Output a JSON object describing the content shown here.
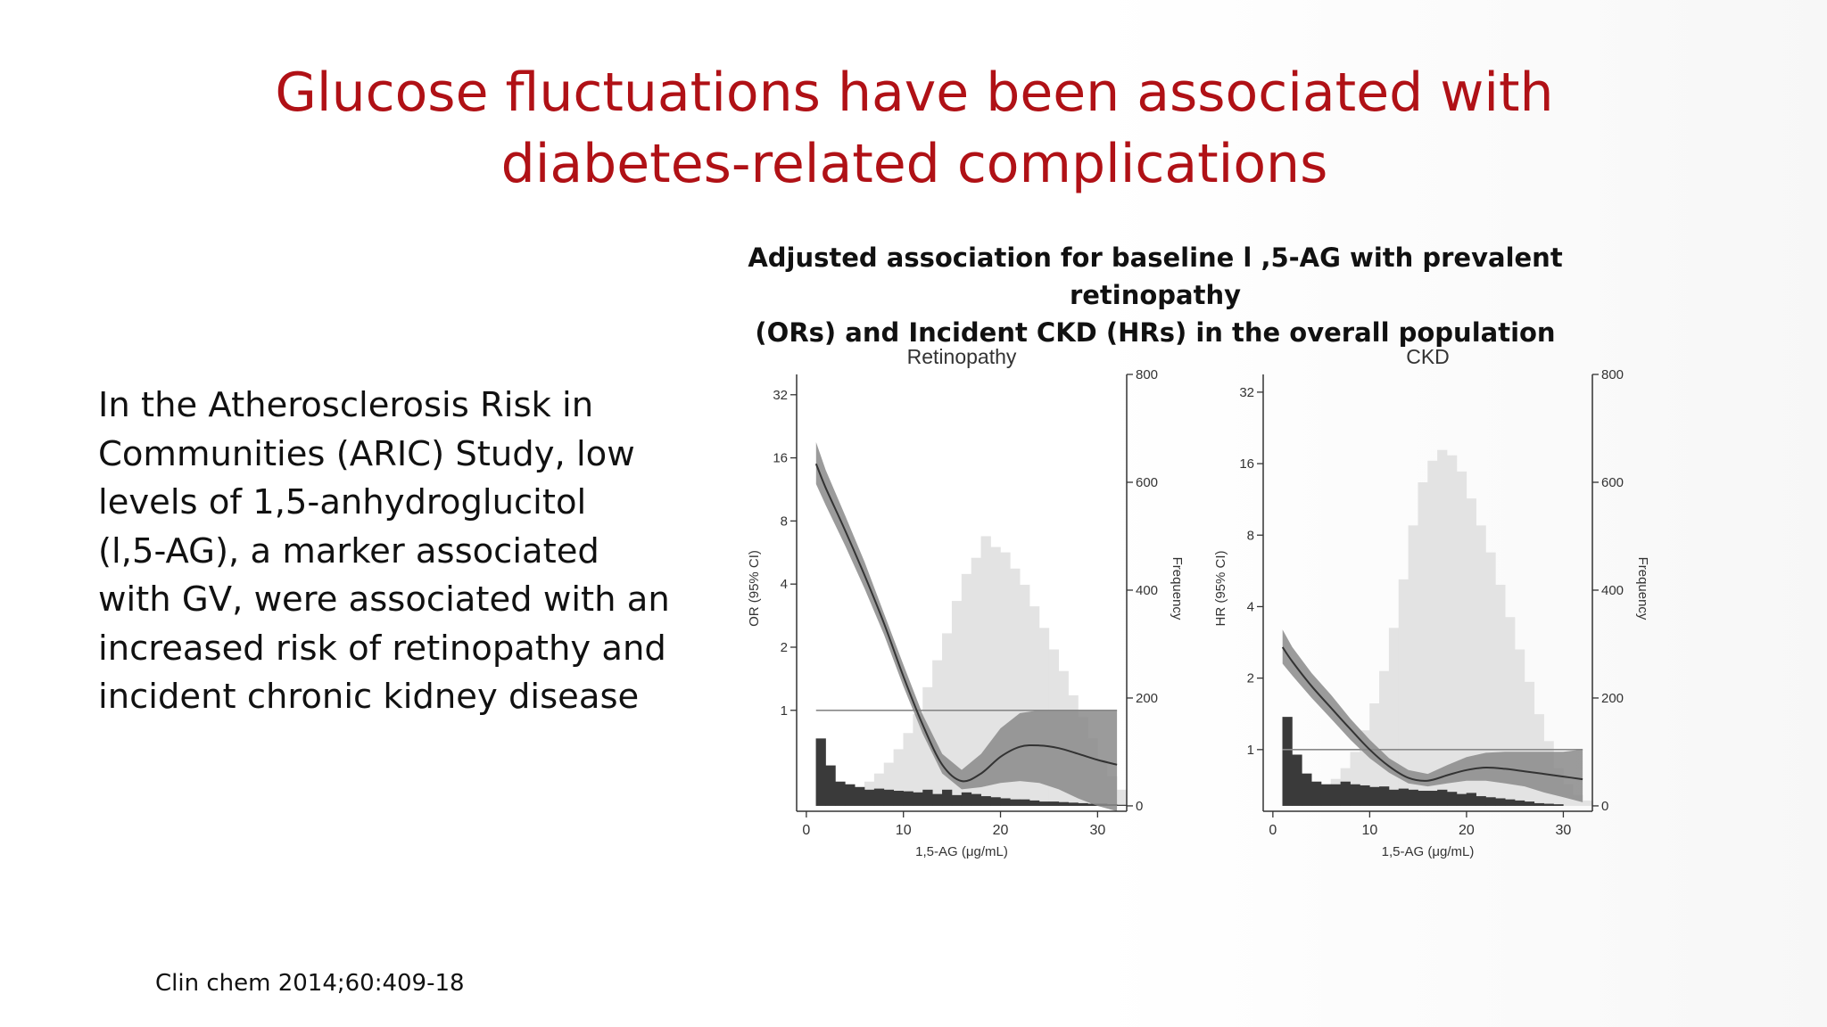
{
  "slide": {
    "title_lines": [
      "Glucose fluctuations have been associated with",
      "diabetes-related complications"
    ],
    "body_lines": [
      "In the Atherosclerosis Risk in",
      "Communities (ARIC) Study, low",
      "levels of 1,5-anhydroglucitol",
      "(l,5-AG), a marker associated",
      "with GV, were associated with an",
      "increased risk of retinopathy and",
      "incident chronic kidney disease"
    ],
    "figure_caption_lines": [
      "Adjusted association for baseline l ,5-AG with prevalent retinopathy",
      "(ORs) and Incident CKD (HRs) in the overall population"
    ],
    "citation": "Clin chem 2014;60:409-18"
  },
  "colors": {
    "title": "#b01116",
    "curve": "#333333",
    "ci_band": "#8a8a8a",
    "freq_overall": "#e3e3e3",
    "freq_outcome": "#3a3a3a",
    "reference_line": "#888888"
  },
  "chart_data": [
    {
      "type": "line",
      "title": "Retinopathy",
      "xlabel": "1,5-AG (μg/mL)",
      "ylabel": "OR (95% CI)",
      "y2label": "Frequency",
      "xlim": [
        -1,
        33
      ],
      "xticks": [
        0,
        10,
        20,
        30
      ],
      "ylim": [
        0.33,
        40
      ],
      "yscale": "log2",
      "yticks": [
        1,
        2,
        4,
        8,
        16,
        32
      ],
      "y2lim": [
        -10,
        800
      ],
      "y2ticks": [
        0,
        200,
        400,
        600,
        800
      ],
      "reference_line": 1,
      "series": [
        {
          "name": "OR",
          "x": [
            1,
            2,
            4,
            6,
            8,
            10,
            12,
            14,
            16,
            18,
            20,
            22,
            24,
            26,
            28,
            30,
            32
          ],
          "y": [
            15,
            11.5,
            7.2,
            4.4,
            2.6,
            1.45,
            0.85,
            0.55,
            0.46,
            0.5,
            0.6,
            0.67,
            0.68,
            0.66,
            0.62,
            0.58,
            0.55
          ]
        },
        {
          "name": "CI lower",
          "x": [
            1,
            2,
            4,
            6,
            8,
            10,
            12,
            14,
            16,
            18,
            20,
            22,
            24,
            26,
            28,
            30,
            32
          ],
          "y": [
            12,
            9.5,
            6.1,
            3.8,
            2.3,
            1.3,
            0.77,
            0.5,
            0.42,
            0.43,
            0.45,
            0.46,
            0.45,
            0.42,
            0.38,
            0.35,
            0.33
          ]
        },
        {
          "name": "CI upper",
          "x": [
            1,
            2,
            4,
            6,
            8,
            10,
            12,
            14,
            16,
            18,
            20,
            22,
            24,
            26,
            28,
            30,
            32
          ],
          "y": [
            19,
            14,
            8.5,
            5.1,
            2.9,
            1.65,
            0.95,
            0.62,
            0.52,
            0.62,
            0.82,
            0.97,
            1.0,
            1.0,
            1.0,
            1.0,
            1.0
          ]
        }
      ],
      "histogram_overall": {
        "bin_start": 1,
        "bin_width": 1,
        "counts": [
          20,
          15,
          20,
          25,
          30,
          45,
          60,
          80,
          105,
          135,
          170,
          220,
          270,
          320,
          380,
          430,
          460,
          500,
          480,
          470,
          440,
          410,
          370,
          330,
          290,
          250,
          205,
          165,
          125,
          85,
          55,
          30
        ]
      },
      "histogram_outcome": {
        "bin_start": 1,
        "bin_width": 1,
        "counts": [
          125,
          75,
          45,
          40,
          35,
          30,
          32,
          30,
          28,
          27,
          25,
          30,
          22,
          30,
          20,
          25,
          22,
          18,
          16,
          14,
          12,
          12,
          10,
          8,
          8,
          7,
          6,
          5,
          4,
          4,
          3,
          2
        ]
      }
    },
    {
      "type": "line",
      "title": "CKD",
      "xlabel": "1,5-AG (μg/mL)",
      "ylabel": "HR (95% CI)",
      "y2label": "Frequency",
      "xlim": [
        -1,
        33
      ],
      "xticks": [
        0,
        10,
        20,
        30
      ],
      "ylim": [
        0.55,
        38
      ],
      "yscale": "log2",
      "yticks": [
        1,
        2,
        4,
        8,
        16,
        32
      ],
      "y2lim": [
        -10,
        800
      ],
      "y2ticks": [
        0,
        200,
        400,
        600,
        800
      ],
      "reference_line": 1,
      "series": [
        {
          "name": "HR",
          "x": [
            1,
            2,
            4,
            6,
            8,
            10,
            12,
            14,
            16,
            18,
            20,
            22,
            24,
            26,
            28,
            30,
            32
          ],
          "y": [
            2.7,
            2.35,
            1.85,
            1.5,
            1.22,
            1.0,
            0.85,
            0.76,
            0.74,
            0.78,
            0.82,
            0.84,
            0.83,
            0.81,
            0.79,
            0.77,
            0.75
          ]
        },
        {
          "name": "CI lower",
          "x": [
            1,
            2,
            4,
            6,
            8,
            10,
            12,
            14,
            16,
            18,
            20,
            22,
            24,
            26,
            28,
            30,
            32
          ],
          "y": [
            2.3,
            2.05,
            1.65,
            1.35,
            1.1,
            0.92,
            0.8,
            0.72,
            0.7,
            0.72,
            0.74,
            0.74,
            0.72,
            0.7,
            0.66,
            0.63,
            0.6
          ]
        },
        {
          "name": "CI upper",
          "x": [
            1,
            2,
            4,
            6,
            8,
            10,
            12,
            14,
            16,
            18,
            20,
            22,
            24,
            26,
            28,
            30,
            32
          ],
          "y": [
            3.2,
            2.7,
            2.1,
            1.7,
            1.35,
            1.1,
            0.92,
            0.82,
            0.79,
            0.86,
            0.93,
            0.97,
            0.98,
            0.98,
            0.98,
            0.98,
            1.0
          ]
        }
      ],
      "histogram_overall": {
        "bin_start": 1,
        "bin_width": 1,
        "counts": [
          40,
          30,
          25,
          30,
          35,
          50,
          70,
          100,
          140,
          190,
          250,
          330,
          420,
          520,
          600,
          640,
          660,
          650,
          620,
          570,
          520,
          470,
          410,
          350,
          290,
          230,
          170,
          120,
          70,
          40,
          20,
          10
        ]
      },
      "histogram_outcome": {
        "bin_start": 1,
        "bin_width": 1,
        "counts": [
          165,
          95,
          60,
          45,
          40,
          40,
          45,
          40,
          38,
          35,
          36,
          30,
          32,
          30,
          28,
          28,
          30,
          26,
          22,
          24,
          18,
          16,
          14,
          12,
          10,
          8,
          5,
          4,
          3,
          0,
          0,
          0
        ]
      }
    }
  ]
}
